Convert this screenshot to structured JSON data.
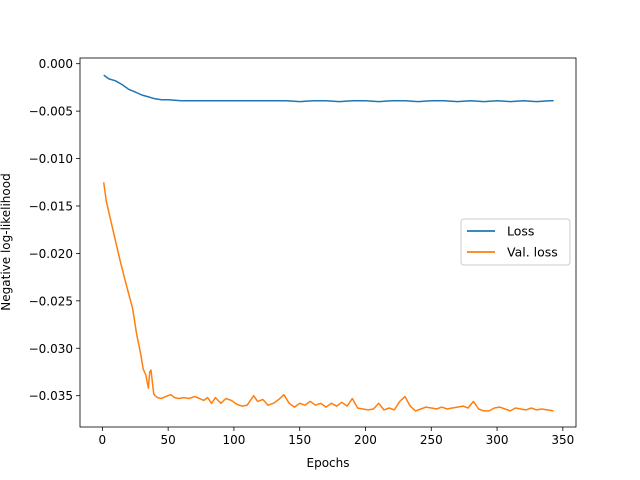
{
  "chart_data": {
    "type": "line",
    "xlabel": "Epochs",
    "ylabel": "Negative log-likelihood",
    "xlim": [
      -17,
      360
    ],
    "ylim": [
      -0.0383,
      0.0006
    ],
    "xticks": [
      0,
      50,
      100,
      150,
      200,
      250,
      300,
      350
    ],
    "yticks": [
      0.0,
      -0.005,
      -0.01,
      -0.015,
      -0.02,
      -0.025,
      -0.03,
      -0.035
    ],
    "ytick_labels": [
      "0.000",
      "−0.005",
      "−0.010",
      "−0.015",
      "−0.020",
      "−0.025",
      "−0.030",
      "−0.035"
    ],
    "grid": false,
    "legend_position": "center-right",
    "series": [
      {
        "name": "Loss",
        "color": "#1f77b4",
        "x": [
          1,
          5,
          10,
          15,
          20,
          25,
          30,
          35,
          40,
          45,
          50,
          60,
          70,
          80,
          90,
          100,
          110,
          120,
          130,
          140,
          150,
          160,
          170,
          180,
          190,
          200,
          210,
          220,
          230,
          240,
          250,
          260,
          270,
          280,
          290,
          300,
          310,
          320,
          330,
          340,
          343
        ],
        "y": [
          -0.0012,
          -0.0016,
          -0.0018,
          -0.0022,
          -0.0027,
          -0.003,
          -0.0033,
          -0.0035,
          -0.0037,
          -0.0038,
          -0.0038,
          -0.0039,
          -0.0039,
          -0.0039,
          -0.0039,
          -0.0039,
          -0.0039,
          -0.0039,
          -0.0039,
          -0.0039,
          -0.004,
          -0.0039,
          -0.0039,
          -0.004,
          -0.0039,
          -0.0039,
          -0.004,
          -0.0039,
          -0.0039,
          -0.004,
          -0.0039,
          -0.0039,
          -0.004,
          -0.0039,
          -0.004,
          -0.0039,
          -0.004,
          -0.0039,
          -0.004,
          -0.0039,
          -0.0039
        ]
      },
      {
        "name": "Val. loss",
        "color": "#ff7f0e",
        "x": [
          1,
          3,
          8,
          13,
          18,
          23,
          26,
          29,
          31,
          33,
          35,
          36,
          37,
          38,
          39,
          40,
          42,
          45,
          48,
          52,
          55,
          58,
          62,
          66,
          70,
          74,
          77,
          80,
          83,
          86,
          90,
          94,
          98,
          102,
          106,
          110,
          115,
          118,
          122,
          126,
          130,
          134,
          138,
          142,
          146,
          150,
          154,
          158,
          162,
          166,
          170,
          174,
          178,
          182,
          186,
          190,
          194,
          198,
          202,
          206,
          210,
          214,
          218,
          222,
          226,
          230,
          234,
          238,
          242,
          246,
          250,
          254,
          258,
          262,
          266,
          270,
          274,
          278,
          282,
          286,
          290,
          294,
          298,
          302,
          306,
          310,
          314,
          318,
          322,
          326,
          330,
          334,
          338,
          343
        ],
        "y": [
          -0.0125,
          -0.0145,
          -0.0175,
          -0.0205,
          -0.0232,
          -0.0258,
          -0.0285,
          -0.0305,
          -0.0322,
          -0.0328,
          -0.0342,
          -0.0325,
          -0.0323,
          -0.0336,
          -0.0348,
          -0.035,
          -0.0352,
          -0.0353,
          -0.0351,
          -0.0349,
          -0.0352,
          -0.0353,
          -0.0352,
          -0.0353,
          -0.0351,
          -0.0353,
          -0.0355,
          -0.0352,
          -0.0358,
          -0.0352,
          -0.0358,
          -0.0353,
          -0.0355,
          -0.0359,
          -0.0361,
          -0.036,
          -0.035,
          -0.0356,
          -0.0354,
          -0.036,
          -0.0358,
          -0.0354,
          -0.0349,
          -0.0358,
          -0.0362,
          -0.0358,
          -0.036,
          -0.0356,
          -0.036,
          -0.0358,
          -0.0362,
          -0.0358,
          -0.0361,
          -0.0357,
          -0.0361,
          -0.0353,
          -0.0363,
          -0.0364,
          -0.0365,
          -0.0364,
          -0.0358,
          -0.0365,
          -0.0363,
          -0.0365,
          -0.0356,
          -0.0351,
          -0.0361,
          -0.0366,
          -0.0364,
          -0.0362,
          -0.0363,
          -0.0364,
          -0.0362,
          -0.0364,
          -0.0363,
          -0.0362,
          -0.0361,
          -0.0363,
          -0.0356,
          -0.0364,
          -0.0366,
          -0.0366,
          -0.0363,
          -0.0362,
          -0.0364,
          -0.0366,
          -0.0363,
          -0.0364,
          -0.0365,
          -0.0363,
          -0.0365,
          -0.0364,
          -0.0365,
          -0.0366
        ]
      }
    ]
  }
}
